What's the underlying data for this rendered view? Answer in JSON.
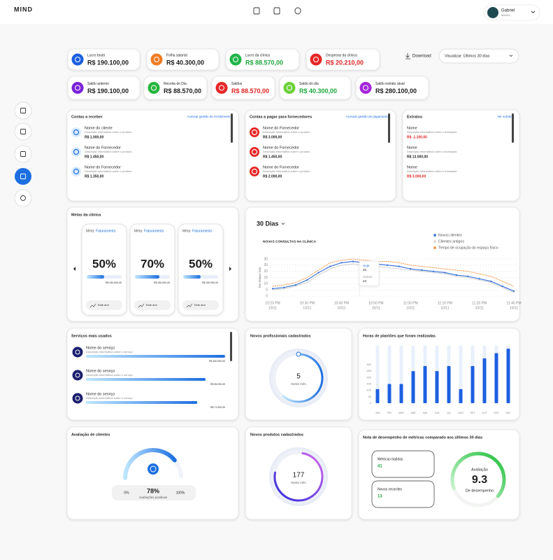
{
  "header": {
    "logo": "MIND",
    "user_name": "Gabriel",
    "user_role": "Médico"
  },
  "kpis": [
    {
      "label": "Lucro bruto",
      "value": "R$ 190.100,00"
    },
    {
      "label": "Folha salarial",
      "value": "R$ 40.300,00"
    },
    {
      "label": "Lucro da clínica",
      "value": "R$ 88.570,00"
    },
    {
      "label": "Despesas da clínica",
      "value": "R$ 20.210,00"
    },
    {
      "label": "Saldo anterior",
      "value": "R$ 190.100,00"
    },
    {
      "label": "Receita do Dia",
      "value": "R$ 88.570,00"
    },
    {
      "label": "Saldos",
      "value": "R$ 88.570,00"
    },
    {
      "label": "Saldo do dia",
      "value": "R$ 40.300,00"
    },
    {
      "label": "Saldo extrato atual",
      "value": "R$ 280.100,00"
    }
  ],
  "download": "Download",
  "view_filter": "Visualizar: Últimos 30 dias",
  "receivables": {
    "title": "Contas a receber",
    "link": "Acessar gestão de recebimentos",
    "items": [
      {
        "name": "Nome do cliente",
        "description": "Descrição informativa sobre o produto",
        "amount": "R$ 1.000,00"
      },
      {
        "name": "Nome do Fornecedor",
        "description": "Descrição informativa sobre o produto",
        "amount": "R$ 1.450,00"
      },
      {
        "name": "Nome do Fornecedor",
        "description": "Descrição informativa sobre o produto",
        "amount": "R$ 1.350,00"
      }
    ]
  },
  "payables": {
    "title": "Contas a pagar para fornecedores",
    "link": "Acessar gestão de pagamentos",
    "items": [
      {
        "name": "Nome do Fornecedor",
        "description": "Descrição informativa sobre o produto",
        "amount": "R$ 3.000,00"
      },
      {
        "name": "Nome do Fornecedor",
        "description": "Descrição informativa sobre o produto",
        "amount": "R$ 1.450,00"
      },
      {
        "name": "Nome do Fornecedor",
        "description": "Descrição informativa sobre o produto",
        "amount": "R$ 2.000,00"
      }
    ]
  },
  "statements": {
    "title": "Extratos",
    "link": "Ver extratos",
    "items": [
      {
        "name": "Nome",
        "description": "Descrição informativa sobre a transação",
        "amount": "R$ -1.100,00"
      },
      {
        "name": "Nome",
        "description": "Descrição informativa sobre a transação",
        "amount": "R$ 13.000,00"
      },
      {
        "name": "Nome",
        "description": "Descrição informativa sobre a transação",
        "amount": "R$ 3.000,00"
      }
    ]
  },
  "goals": {
    "title": "Metas da clínica",
    "cards": [
      {
        "label": "Meta:",
        "goal": "Faturamento",
        "value": 50,
        "value_label": "50%",
        "target": "R$ 150.000,00",
        "period": "Este ano"
      },
      {
        "label": "Meta:",
        "goal": "Faturamento",
        "value": 70,
        "value_label": "70%",
        "target": "R$ 150.000,00",
        "period": "Este ano"
      },
      {
        "label": "Meta:",
        "goal": "Faturamento",
        "value": 50,
        "value_label": "50%",
        "target": "R$ 150.000,00",
        "period": "Este ano"
      }
    ]
  },
  "services": {
    "title": "Serviços mais usados",
    "items": [
      {
        "name": "Nome do serviço",
        "description": "Descrição informativa sobre o serviço",
        "amount": "R$ 150.000,00"
      },
      {
        "name": "Nome do serviço",
        "description": "Descrição informativa sobre o serviço",
        "amount": "R$ 95.000,00"
      },
      {
        "name": "Nome do serviço",
        "description": "Descrição informativa sobre o serviço",
        "amount": "R$ 71.000,00"
      }
    ]
  },
  "new_professionals": {
    "title": "Novos profissionais cadastrados",
    "value": 5,
    "caption": "Neste mês"
  },
  "new_products": {
    "title": "Novos produtos cadastrados",
    "value": 177,
    "caption": "Neste mês"
  },
  "rating": {
    "title": "Avaliação de clientes",
    "value": 78,
    "value_label": "78%",
    "caption": "Avaliações positivas",
    "scale": [
      {
        "value": 0,
        "label": "0%"
      },
      {
        "value": 100,
        "label": "100%"
      }
    ]
  },
  "performance": {
    "title": "Nota de desempenho de métricas comparado aos últimos 30 dias",
    "metrics": [
      {
        "label": "Métricas batidas",
        "value": 41
      },
      {
        "label": "Novos recordes",
        "value": 13
      }
    ],
    "score_label": "Avaliação",
    "score": 9.3,
    "score_caption": "De desempenho"
  },
  "chart_data": [
    {
      "type": "line",
      "period": "30 Dias",
      "title": "NOVAS CONSULTAS NA CLÍNICA",
      "ylabel": "Em tempo real",
      "categories": [
        "10:23 PM",
        null,
        null,
        "10:30 PM",
        null,
        null,
        "10:40 PM",
        null,
        null,
        "10:50 PM",
        null,
        null,
        "11:00 PM",
        null,
        null,
        "11:10 PM",
        null,
        null,
        "11:20 PM",
        null,
        null,
        "11:40 PM"
      ],
      "category_dates": [
        "10/11",
        null,
        null,
        "10/11",
        null,
        null,
        "10/11",
        null,
        null,
        "10/11",
        null,
        null,
        "10/11",
        null,
        null,
        "10/11",
        null,
        null,
        "10/11",
        null,
        null,
        "10/11"
      ],
      "series": [
        {
          "name": "Novos clientes",
          "color": "#2d6bd8",
          "values": [
            6,
            7,
            9,
            13,
            19,
            24,
            27,
            28,
            27,
            26,
            25,
            24,
            22,
            21,
            20,
            19,
            17,
            16,
            14,
            12,
            8,
            4
          ]
        },
        {
          "name": "Clientes antigos",
          "color": "#d3d3d3",
          "values": [
            5,
            6,
            8,
            11,
            17,
            22,
            25,
            26,
            25,
            24,
            23,
            22,
            21,
            20,
            19,
            18,
            16,
            15,
            13,
            11,
            7,
            3
          ]
        },
        {
          "name": "Tempo de ocupação do espaço físico",
          "color": "#f28a30",
          "values": [
            8,
            9,
            11,
            15,
            21,
            27,
            29,
            30,
            29,
            28,
            28,
            27,
            25,
            24,
            23,
            22,
            21,
            20,
            18,
            16,
            12,
            8
          ]
        }
      ],
      "ylim": [
        0,
        30
      ],
      "yticks": [
        0,
        5,
        10,
        15,
        20,
        25,
        30
      ],
      "grid": true,
      "legend": "upper right",
      "tooltip": {
        "title": "Hoje",
        "value": 25,
        "compare_title": "Ontem",
        "compare_value": 23
      }
    },
    {
      "type": "bar",
      "title": "Horas de plantões que foram realizadas",
      "categories": [
        "JAN",
        "FEV",
        "MAR",
        "ABR",
        "MAI",
        "JUN",
        "JUL",
        "AGO",
        "SET",
        "OUT",
        "NOV",
        "DEZ"
      ],
      "values": [
        110,
        150,
        150,
        250,
        290,
        250,
        290,
        110,
        290,
        350,
        390,
        425
      ],
      "color": "#1d5fe0",
      "ylim": [
        0,
        450
      ],
      "yticks": [
        0,
        50,
        100,
        150,
        200,
        250,
        300
      ]
    }
  ]
}
